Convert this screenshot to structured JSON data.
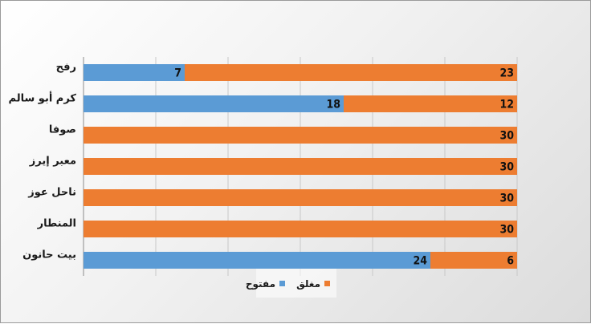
{
  "chart_data": {
    "type": "bar",
    "orientation": "horizontal",
    "stacked": "100%",
    "categories": [
      "رفح",
      "كرم أبو سالم",
      "صوفا",
      "معبر إيرز",
      "ناحل عوز",
      "المنطار",
      "بيت حانون"
    ],
    "series": [
      {
        "name": "مفتوح",
        "color": "#5b9bd5",
        "values": [
          7,
          18,
          0,
          0,
          0,
          0,
          24
        ]
      },
      {
        "name": "مغلق",
        "color": "#ed7d31",
        "values": [
          23,
          12,
          30,
          30,
          30,
          30,
          6
        ]
      }
    ],
    "title": "",
    "xlabel": "",
    "ylabel": "",
    "grid": true,
    "legend": "bottom-center"
  }
}
